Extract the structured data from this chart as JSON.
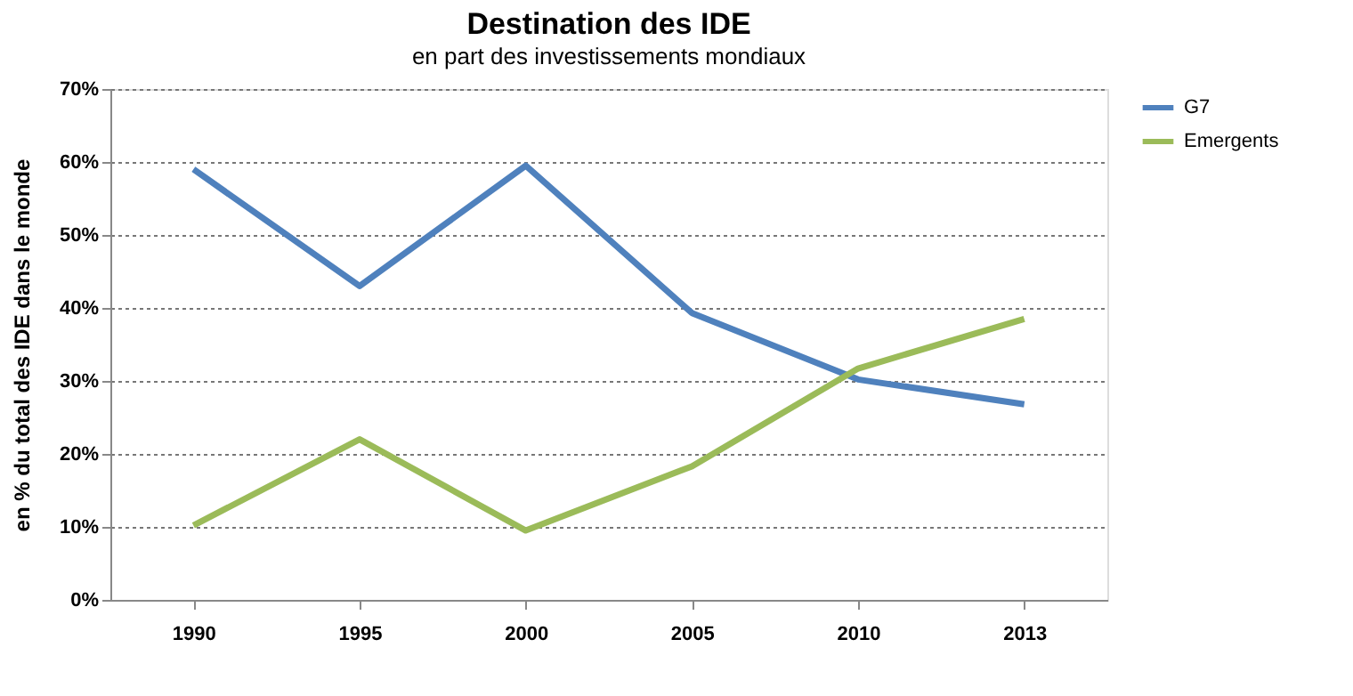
{
  "chart_data": {
    "type": "line",
    "title": "Destination des IDE",
    "subtitle": "en part des investissements mondiaux",
    "ylabel": "en % du total des IDE dans le monde",
    "categories": [
      "1990",
      "1995",
      "2000",
      "2005",
      "2010",
      "2013"
    ],
    "series": [
      {
        "name": "G7",
        "color": "#4f81bd",
        "values": [
          59,
          43,
          59.5,
          39.3,
          30.2,
          26.8
        ]
      },
      {
        "name": "Emergents",
        "color": "#9bbb59",
        "values": [
          10.2,
          22,
          9.5,
          18.3,
          31.7,
          38.5
        ]
      }
    ],
    "ylim": [
      0,
      70
    ],
    "yticks": [
      {
        "value": 0,
        "label": "0%"
      },
      {
        "value": 10,
        "label": "10%"
      },
      {
        "value": 20,
        "label": "20%"
      },
      {
        "value": 30,
        "label": "30%"
      },
      {
        "value": 40,
        "label": "40%"
      },
      {
        "value": 50,
        "label": "50%"
      },
      {
        "value": 60,
        "label": "60%"
      },
      {
        "value": 70,
        "label": "70%"
      }
    ],
    "grid": "y",
    "legend": "right",
    "marker": "none",
    "line_style": "solid"
  }
}
